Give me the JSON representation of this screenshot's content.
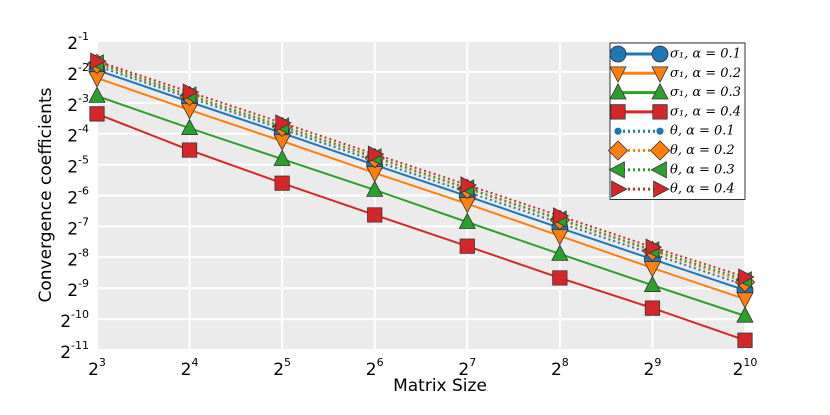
{
  "chart_data": {
    "type": "line",
    "x_label": "Matrix Size",
    "y_label": "Convergence coefficients",
    "log_x": 2,
    "log_y": 2,
    "grid": true,
    "legend": "upper right",
    "x": [
      8,
      16,
      32,
      64,
      128,
      256,
      512,
      1024
    ],
    "xlim": [
      8,
      1024
    ],
    "ylim": [
      0.00048828125,
      0.5
    ],
    "xticks": [
      {
        "value": 8,
        "label": "2^3"
      },
      {
        "value": 16,
        "label": "2^4"
      },
      {
        "value": 32,
        "label": "2^5"
      },
      {
        "value": 64,
        "label": "2^6"
      },
      {
        "value": 128,
        "label": "2^7"
      },
      {
        "value": 256,
        "label": "2^8"
      },
      {
        "value": 512,
        "label": "2^9"
      },
      {
        "value": 1024,
        "label": "2^10"
      }
    ],
    "yticks": [
      {
        "value": 0.5,
        "label": "2^-1"
      },
      {
        "value": 0.25,
        "label": "2^-2"
      },
      {
        "value": 0.125,
        "label": "2^-3"
      },
      {
        "value": 0.0625,
        "label": "2^-4"
      },
      {
        "value": 0.03125,
        "label": "2^-5"
      },
      {
        "value": 0.015625,
        "label": "2^-6"
      },
      {
        "value": 0.0078125,
        "label": "2^-7"
      },
      {
        "value": 0.00390625,
        "label": "2^-8"
      },
      {
        "value": 0.001953125,
        "label": "2^-9"
      },
      {
        "value": 0.0009765625,
        "label": "2^-10"
      },
      {
        "value": 0.00048828125,
        "label": "2^-11"
      }
    ],
    "series": [
      {
        "name": "σ₁, α = 0.1",
        "color": "#1f77b4",
        "linestyle": "solid",
        "marker": "circle",
        "values": [
          0.2606,
          0.1276,
          0.0634,
          0.031,
          0.0154,
          0.00754,
          0.00374,
          0.00187
        ]
      },
      {
        "name": "σ₁, α = 0.2",
        "color": "#ff7f0e",
        "linestyle": "solid",
        "marker": "triangle-down",
        "values": [
          0.2176,
          0.1066,
          0.0529,
          0.0259,
          0.01296,
          0.00631,
          0.00307,
          0.00153
        ]
      },
      {
        "name": "σ₁, α = 0.3",
        "color": "#2ca02c",
        "linestyle": "solid",
        "marker": "triangle-up",
        "values": [
          0.1456,
          0.0707,
          0.0354,
          0.0177,
          0.0086,
          0.00421,
          0.00209,
          0.00105
        ]
      },
      {
        "name": "σ₁, α = 0.4",
        "color": "#d62728",
        "linestyle": "solid",
        "marker": "square",
        "values": [
          0.0975,
          0.0433,
          0.0206,
          0.0101,
          0.00501,
          0.00246,
          0.00125,
          0.000608
        ]
      },
      {
        "name": "θ, α = 0.1",
        "color": "#1f77b4",
        "linestyle": "dotted",
        "marker": "dot",
        "values": [
          0.2852,
          0.1397,
          0.0694,
          0.034,
          0.0169,
          0.00843,
          0.00421,
          0.00209
        ]
      },
      {
        "name": "θ, α = 0.2",
        "color": "#ff7f0e",
        "linestyle": "dotted",
        "marker": "diamond",
        "values": [
          0.2994,
          0.1456,
          0.0728,
          0.0361,
          0.0181,
          0.00903,
          0.00449,
          0.00224
        ]
      },
      {
        "name": "θ, α = 0.3",
        "color": "#2ca02c",
        "linestyle": "dotted",
        "marker": "triangle-left",
        "values": [
          0.3057,
          0.1487,
          0.0743,
          0.0372,
          0.0185,
          0.00922,
          0.00461,
          0.00236
        ]
      },
      {
        "name": "θ, α = 0.4",
        "color": "#d62728",
        "linestyle": "dotted",
        "marker": "triangle-right",
        "values": [
          0.3187,
          0.1593,
          0.0797,
          0.0395,
          0.0198,
          0.00988,
          0.00491,
          0.00251
        ]
      }
    ]
  }
}
